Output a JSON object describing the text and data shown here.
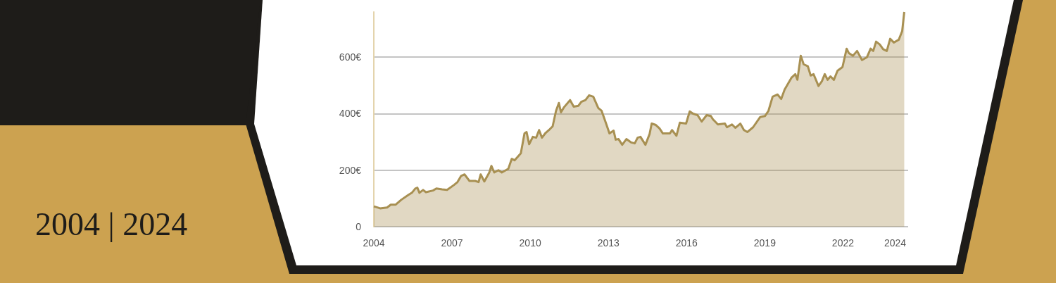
{
  "chart_data": {
    "type": "area",
    "title": "2004 | 2024",
    "xlim": [
      2004,
      2024.5
    ],
    "ylim": [
      0,
      760
    ],
    "xticks": [
      2004,
      2007,
      2010,
      2013,
      2016,
      2019,
      2022,
      2024
    ],
    "yticks": [
      0,
      {
        "value": 200,
        "label": "200€"
      },
      {
        "value": 400,
        "label": "400€"
      },
      {
        "value": 600,
        "label": "600€"
      }
    ],
    "grid": "y",
    "series": [
      {
        "color": "#a89052",
        "x": [
          2004.0,
          2004.24,
          2004.51,
          2004.65,
          2004.84,
          2005.05,
          2005.32,
          2005.46,
          2005.59,
          2005.67,
          2005.75,
          2005.89,
          2006.0,
          2006.27,
          2006.4,
          2006.62,
          2006.81,
          2007.08,
          2007.21,
          2007.35,
          2007.48,
          2007.67,
          2007.89,
          2008.02,
          2008.1,
          2008.24,
          2008.43,
          2008.51,
          2008.62,
          2008.78,
          2008.91,
          2009.16,
          2009.29,
          2009.4,
          2009.64,
          2009.78,
          2009.86,
          2009.96,
          2010.1,
          2010.23,
          2010.34,
          2010.45,
          2010.59,
          2010.75,
          2010.86,
          2010.99,
          2011.1,
          2011.18,
          2011.29,
          2011.53,
          2011.67,
          2011.85,
          2011.96,
          2012.12,
          2012.26,
          2012.42,
          2012.61,
          2012.74,
          2012.93,
          2013.04,
          2013.2,
          2013.28,
          2013.39,
          2013.53,
          2013.69,
          2013.88,
          2014.01,
          2014.12,
          2014.23,
          2014.42,
          2014.58,
          2014.66,
          2014.82,
          2014.96,
          2015.09,
          2015.36,
          2015.44,
          2015.61,
          2015.74,
          2015.98,
          2016.12,
          2016.25,
          2016.42,
          2016.58,
          2016.77,
          2016.93,
          2017.01,
          2017.2,
          2017.47,
          2017.55,
          2017.74,
          2017.87,
          2018.06,
          2018.2,
          2018.33,
          2018.55,
          2018.82,
          2019.01,
          2019.14,
          2019.3,
          2019.49,
          2019.63,
          2019.76,
          2020.03,
          2020.17,
          2020.25,
          2020.38,
          2020.49,
          2020.65,
          2020.76,
          2020.87,
          2021.06,
          2021.19,
          2021.3,
          2021.41,
          2021.52,
          2021.65,
          2021.79,
          2021.98,
          2022.14,
          2022.22,
          2022.38,
          2022.54,
          2022.73,
          2022.92,
          2023.06,
          2023.16,
          2023.27,
          2023.41,
          2023.54,
          2023.68,
          2023.81,
          2023.95,
          2024.14,
          2024.27,
          2024.35
        ],
        "values": [
          72,
          65,
          68,
          78,
          78,
          95,
          112,
          120,
          135,
          138,
          120,
          130,
          122,
          128,
          135,
          132,
          130,
          148,
          158,
          180,
          185,
          162,
          162,
          158,
          185,
          160,
          192,
          215,
          192,
          200,
          192,
          205,
          240,
          235,
          260,
          330,
          335,
          292,
          318,
          315,
          342,
          315,
          332,
          345,
          355,
          410,
          438,
          405,
          422,
          448,
          425,
          428,
          442,
          448,
          465,
          460,
          420,
          410,
          360,
          330,
          340,
          308,
          310,
          290,
          310,
          298,
          295,
          315,
          318,
          290,
          328,
          365,
          360,
          348,
          330,
          330,
          342,
          322,
          368,
          365,
          408,
          400,
          395,
          372,
          395,
          392,
          380,
          362,
          365,
          352,
          362,
          350,
          365,
          342,
          335,
          352,
          388,
          392,
          410,
          460,
          468,
          452,
          485,
          528,
          540,
          520,
          605,
          575,
          568,
          535,
          540,
          498,
          515,
          540,
          520,
          532,
          520,
          552,
          565,
          630,
          615,
          605,
          622,
          590,
          600,
          630,
          622,
          655,
          645,
          628,
          622,
          665,
          652,
          662,
          692,
          760
        ]
      }
    ]
  }
}
